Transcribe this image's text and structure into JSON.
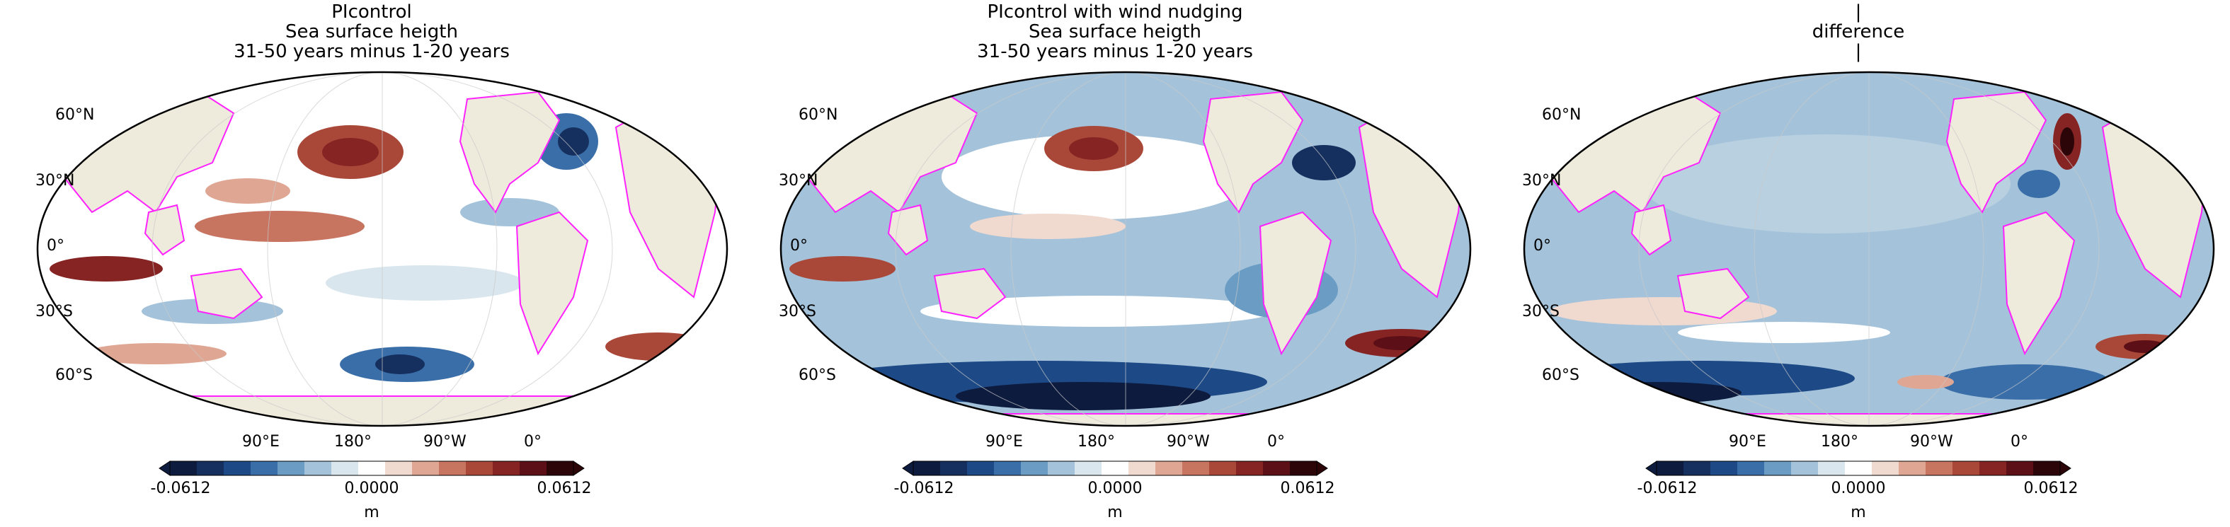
{
  "panels": [
    {
      "title_lines": [
        "PIcontrol",
        "Sea surface heigth",
        "31-50 years minus 1-20 years"
      ],
      "lat_labels": [
        "60°N",
        "30°N",
        "0°",
        "30°S",
        "60°S"
      ],
      "lon_labels": [
        "90°E",
        "180°",
        "90°W",
        "0°"
      ],
      "colorbar": {
        "ticks": [
          "-0.0612",
          "0.0000",
          "0.0612"
        ],
        "unit": "m"
      }
    },
    {
      "title_lines": [
        "PIcontrol with wind nudging",
        "Sea surface heigth",
        "31-50 years minus 1-20 years"
      ],
      "lat_labels": [
        "60°N",
        "30°N",
        "0°",
        "30°S",
        "60°S"
      ],
      "lon_labels": [
        "90°E",
        "180°",
        "90°W",
        "0°"
      ],
      "colorbar": {
        "ticks": [
          "-0.0612",
          "0.0000",
          "0.0612"
        ],
        "unit": "m"
      }
    },
    {
      "title_lines": [
        "|",
        "difference",
        "|"
      ],
      "lat_labels": [
        "60°N",
        "30°N",
        "0°",
        "30°S",
        "60°S"
      ],
      "lon_labels": [
        "90°E",
        "180°",
        "90°W",
        "0°"
      ],
      "colorbar": {
        "ticks": [
          "-0.0612",
          "0.0000",
          "0.0612"
        ],
        "unit": "m"
      }
    }
  ],
  "colors": {
    "land": "#efebdc",
    "coastline": "#ff22ff",
    "ocean_neutral": "#ffffff",
    "colormap": [
      "#0d1b3e",
      "#15305f",
      "#1d4a86",
      "#3a6ea8",
      "#6a9cc4",
      "#a4c3da",
      "#d9e6ee",
      "#ffffff",
      "#f0d9cf",
      "#dfa793",
      "#c77461",
      "#a94838",
      "#862424",
      "#5c0f16",
      "#2c0509"
    ]
  },
  "colorbar_range": [
    -0.0612,
    0.0612
  ]
}
